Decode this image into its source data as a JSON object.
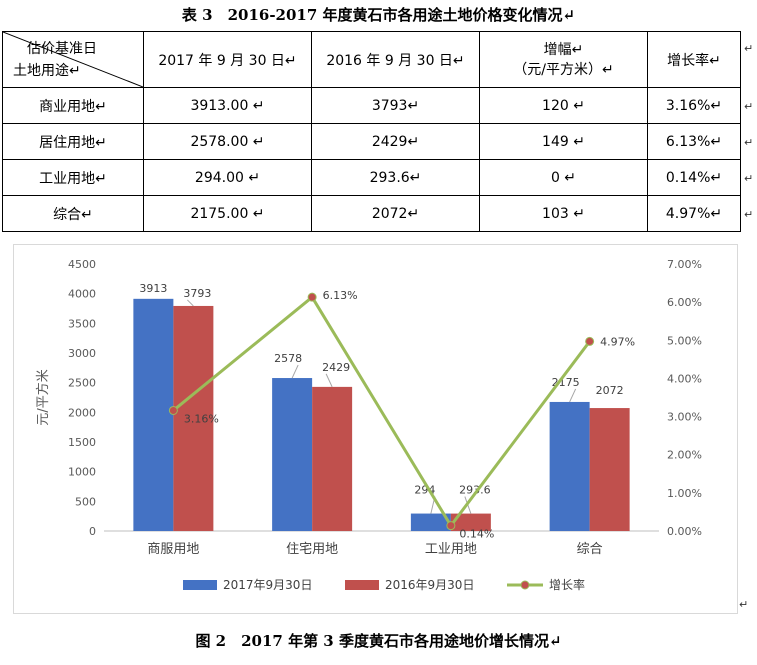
{
  "table": {
    "title": "表 3　2016-2017 年度黄石市各用途土地价格变化情况↵",
    "corner_top": "估价基准日",
    "corner_bottom": "土地用途↵",
    "headers": [
      "2017 年 9 月 30 日↵",
      "2016 年 9 月 30 日↵",
      "增幅↵",
      "增长率↵"
    ],
    "header_sub": "（元/平方米）↵",
    "rows": [
      {
        "use": "商业用地↵",
        "v2017": "3913.00 ↵",
        "v2016": "3793↵",
        "diff": "120 ↵",
        "rate": "3.16%↵"
      },
      {
        "use": "居住用地↵",
        "v2017": "2578.00 ↵",
        "v2016": "2429↵",
        "diff": "149 ↵",
        "rate": "6.13%↵"
      },
      {
        "use": "工业用地↵",
        "v2017": "294.00 ↵",
        "v2016": "293.6↵",
        "diff": "0 ↵",
        "rate": "0.14%↵"
      },
      {
        "use": "综合↵",
        "v2017": "2175.00 ↵",
        "v2016": "2072↵",
        "diff": "103 ↵",
        "rate": "4.97%↵"
      }
    ],
    "row_mark": "↵"
  },
  "chart_data": {
    "type": "bar",
    "categories": [
      "商服用地",
      "住宅用地",
      "工业用地",
      "综合"
    ],
    "series": [
      {
        "name": "2017年9月30日",
        "values": [
          3913,
          2578,
          294,
          2175
        ],
        "color": "#4472c4",
        "labels": [
          "3913",
          "2578",
          "294",
          "2175"
        ]
      },
      {
        "name": "2016年9月30日",
        "values": [
          3793,
          2429,
          293.6,
          2072
        ],
        "color": "#c0504d",
        "labels": [
          "3793",
          "2429",
          "293.6",
          "2072"
        ]
      }
    ],
    "line_series": {
      "name": "增长率",
      "values": [
        3.16,
        6.13,
        0.14,
        4.97
      ],
      "labels": [
        "3.16%",
        "6.13%",
        "0.14%",
        "4.97%"
      ],
      "color": "#9bbb59",
      "marker_color": "#c0504d",
      "axis": "right"
    },
    "ylabel": "元/平方米",
    "ylim": [
      0,
      4500
    ],
    "yticks": [
      "0",
      "500",
      "1000",
      "1500",
      "2000",
      "2500",
      "3000",
      "3500",
      "4000",
      "4500"
    ],
    "y2lim": [
      0,
      7
    ],
    "y2ticks": [
      "0.00%",
      "1.00%",
      "2.00%",
      "3.00%",
      "4.00%",
      "5.00%",
      "6.00%",
      "7.00%"
    ],
    "grid": false,
    "legend": "bottom"
  },
  "figure": {
    "caption": "图 2　2017 年第 3 季度黄石市各用途地价增长情况↵",
    "end_mark": "↵"
  }
}
